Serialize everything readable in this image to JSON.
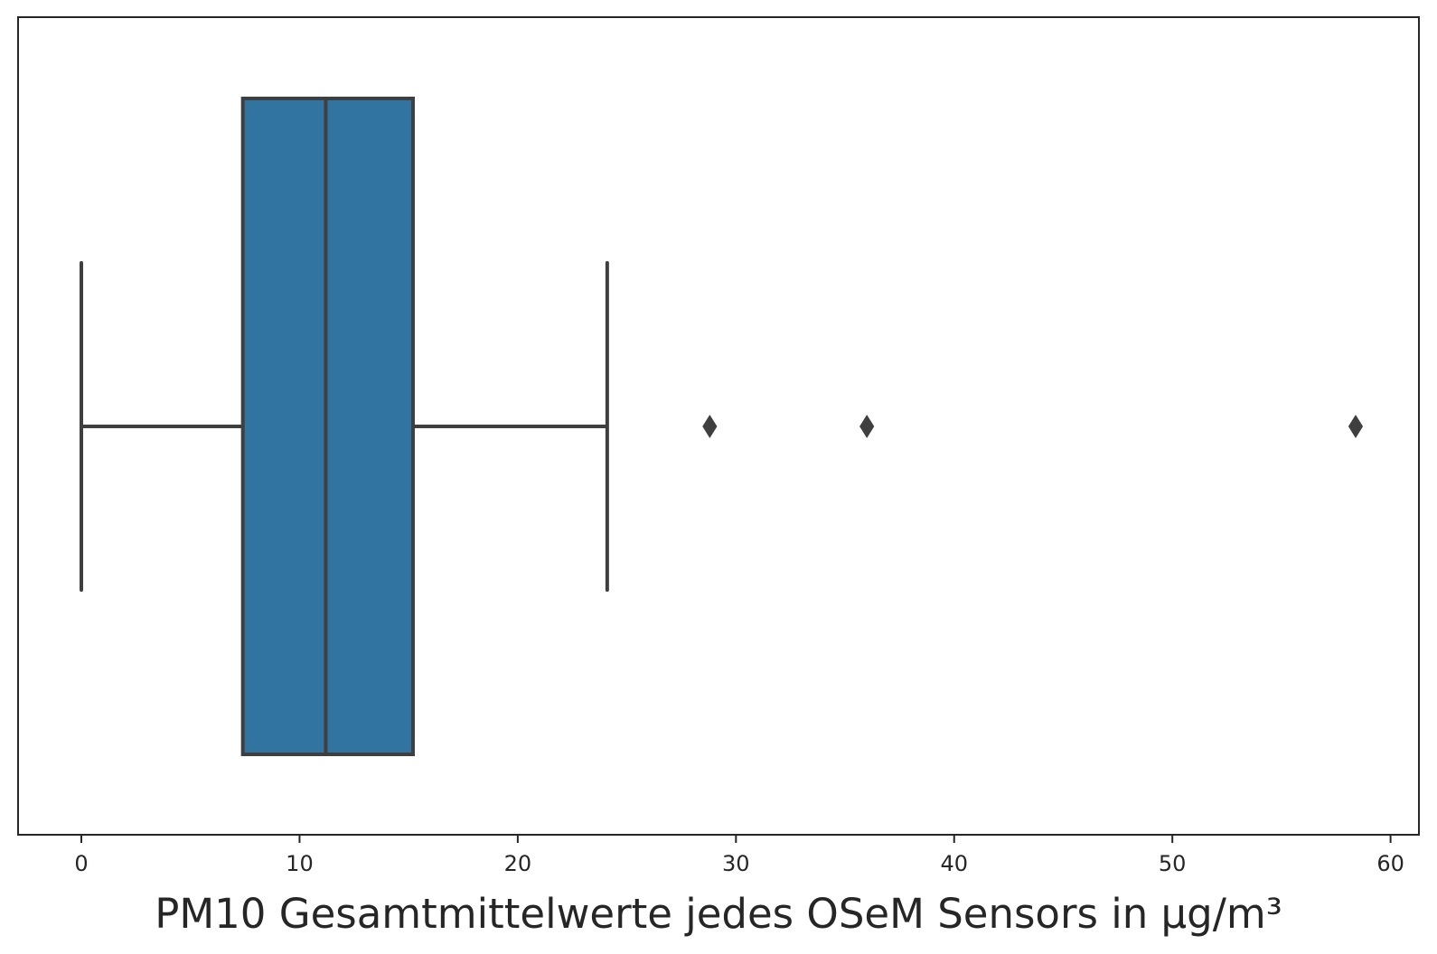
{
  "chart_data": {
    "type": "boxplot",
    "orientation": "horizontal",
    "xlabel": "PM10 Gesamtmittelwerte jedes OSeM Sensors in µg/m³",
    "ylabel": "",
    "xlim": [
      -2.9,
      61.3
    ],
    "xticks": [
      0,
      10,
      20,
      30,
      40,
      50,
      60
    ],
    "xtick_labels": [
      "0",
      "10",
      "20",
      "30",
      "40",
      "50",
      "60"
    ],
    "grid": false,
    "box": {
      "whisker_low": 0.0,
      "q1": 7.4,
      "median": 11.2,
      "q3": 15.2,
      "whisker_high": 24.1
    },
    "outliers": [
      28.8,
      36.0,
      58.4
    ],
    "colors": {
      "box_fill": "#3274a1",
      "line": "#3f3f3f",
      "frame": "#262626"
    }
  }
}
